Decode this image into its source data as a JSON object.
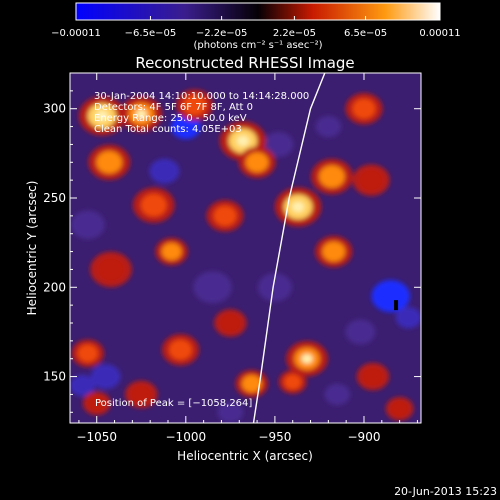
{
  "chart_data": {
    "type": "heatmap",
    "title": "Reconstructed RHESSI Image",
    "xlabel": "Heliocentric X (arcsec)",
    "ylabel": "Heliocentric Y (arcsec)",
    "xlim": [
      -1065,
      -868
    ],
    "ylim": [
      124,
      320
    ],
    "xticks": [
      -1050,
      -1000,
      -950,
      -900
    ],
    "xtick_labels": [
      "−1050",
      "−1000",
      "−950",
      "−900"
    ],
    "yticks": [
      150,
      200,
      250,
      300
    ],
    "ytick_labels": [
      "150",
      "200",
      "250",
      "300"
    ],
    "colorbar": {
      "range": [
        -0.00011,
        0.00011
      ],
      "ticks": [
        -0.00011,
        -6.5e-05,
        -2.2e-05,
        2.2e-05,
        6.5e-05,
        0.00011
      ],
      "tick_labels": [
        "−0.00011",
        "−6.5e−05",
        "−2.2e−05",
        "2.2e−05",
        "6.5e−05",
        "0.00011"
      ],
      "unit_label": "(photons cm⁻² s⁻¹ asec⁻²)",
      "colormap": [
        "#0000ff",
        "#2b1a8a",
        "#000000",
        "#d02000",
        "#ff8c00",
        "#ffffff"
      ]
    },
    "annotations": [
      "30-Jan-2004 14:10:10.000 to 14:14:28.000",
      "Detectors: 4F 5F 6F 7F 8F, Att 0",
      "Energy Range: 25.0 - 50.0 keV",
      "Clean    Total counts: 4.05E+03"
    ],
    "peak_label": "Position of Peak = [−1058,264]",
    "peak": [
      -1058,
      264
    ],
    "limb_curve": [
      [
        -962,
        124
      ],
      [
        -958,
        150
      ],
      [
        -951,
        200
      ],
      [
        -942,
        250
      ],
      [
        -930,
        300
      ],
      [
        -922,
        320
      ]
    ],
    "grid": false,
    "hot_blobs": [
      {
        "x": -1047,
        "y": 296,
        "v": 1.0,
        "s": 10
      },
      {
        "x": -1043,
        "y": 270,
        "v": 0.85,
        "s": 9
      },
      {
        "x": -1025,
        "y": 297,
        "v": 0.9,
        "s": 9
      },
      {
        "x": -995,
        "y": 302,
        "v": 0.75,
        "s": 8
      },
      {
        "x": -968,
        "y": 282,
        "v": 1.0,
        "s": 10
      },
      {
        "x": -960,
        "y": 270,
        "v": 0.8,
        "s": 8
      },
      {
        "x": -978,
        "y": 240,
        "v": 0.7,
        "s": 8
      },
      {
        "x": -1018,
        "y": 246,
        "v": 0.75,
        "s": 9
      },
      {
        "x": -1008,
        "y": 220,
        "v": 0.8,
        "s": 7
      },
      {
        "x": -1042,
        "y": 210,
        "v": 0.55,
        "s": 9
      },
      {
        "x": -1003,
        "y": 165,
        "v": 0.7,
        "s": 8
      },
      {
        "x": -975,
        "y": 180,
        "v": 0.5,
        "s": 7
      },
      {
        "x": -963,
        "y": 146,
        "v": 0.8,
        "s": 7
      },
      {
        "x": -937,
        "y": 245,
        "v": 0.95,
        "s": 10
      },
      {
        "x": -918,
        "y": 262,
        "v": 0.8,
        "s": 9
      },
      {
        "x": -896,
        "y": 260,
        "v": 0.6,
        "s": 8
      },
      {
        "x": -917,
        "y": 220,
        "v": 0.85,
        "s": 8
      },
      {
        "x": -932,
        "y": 160,
        "v": 0.9,
        "s": 9
      },
      {
        "x": -940,
        "y": 147,
        "v": 0.7,
        "s": 6
      },
      {
        "x": -895,
        "y": 150,
        "v": 0.6,
        "s": 7
      },
      {
        "x": -1055,
        "y": 163,
        "v": 0.7,
        "s": 7
      },
      {
        "x": -900,
        "y": 300,
        "v": 0.7,
        "s": 8
      },
      {
        "x": -880,
        "y": 132,
        "v": 0.6,
        "s": 6
      },
      {
        "x": -1025,
        "y": 140,
        "v": 0.5,
        "s": 7
      },
      {
        "x": -1050,
        "y": 135,
        "v": 0.55,
        "s": 6
      }
    ],
    "cold_blobs": [
      {
        "x": -1000,
        "y": 290,
        "v": 1.0,
        "s": 7
      },
      {
        "x": -1012,
        "y": 265,
        "v": 0.8,
        "s": 7
      },
      {
        "x": -1055,
        "y": 235,
        "v": 0.6,
        "s": 8
      },
      {
        "x": -985,
        "y": 200,
        "v": 0.55,
        "s": 9
      },
      {
        "x": -1045,
        "y": 150,
        "v": 0.8,
        "s": 7
      },
      {
        "x": -1058,
        "y": 145,
        "v": 0.9,
        "s": 6
      },
      {
        "x": -885,
        "y": 195,
        "v": 1.0,
        "s": 9
      },
      {
        "x": -875,
        "y": 183,
        "v": 0.8,
        "s": 6
      },
      {
        "x": -902,
        "y": 175,
        "v": 0.7,
        "s": 7
      },
      {
        "x": -948,
        "y": 280,
        "v": 0.7,
        "s": 7
      },
      {
        "x": -920,
        "y": 290,
        "v": 0.6,
        "s": 6
      },
      {
        "x": -950,
        "y": 200,
        "v": 0.5,
        "s": 8
      },
      {
        "x": -915,
        "y": 140,
        "v": 0.5,
        "s": 6
      },
      {
        "x": -975,
        "y": 130,
        "v": 0.55,
        "s": 6
      }
    ]
  },
  "footer": {
    "timestamp": "20-Jun-2013 15:23"
  }
}
